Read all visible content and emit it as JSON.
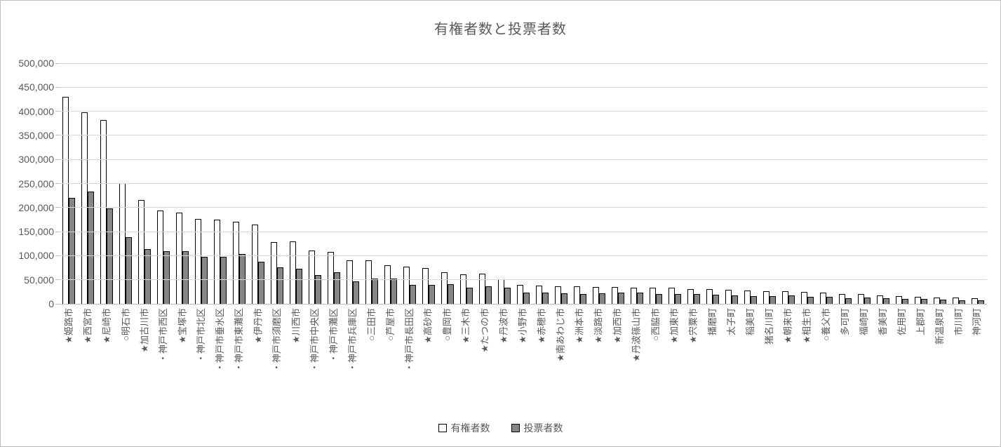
{
  "title": "有権者数と投票者数",
  "legend": {
    "series1_label": "有権者数",
    "series2_label": "投票者数"
  },
  "colors": {
    "series1_fill": "#FFFFFF",
    "series2_fill": "#868686",
    "bar_border": "#000000",
    "text": "#595959",
    "gridline": "#D9D9D9",
    "axis_line": "#BFBFBF"
  },
  "chart_data": {
    "type": "bar",
    "title": "有権者数と投票者数",
    "grid": true,
    "legend_position": "bottom",
    "ylim": [
      0,
      500000
    ],
    "ytick_step": 50000,
    "ytick_labels": [
      "0",
      "50,000",
      "100,000",
      "150,000",
      "200,000",
      "250,000",
      "300,000",
      "350,000",
      "400,000",
      "450,000",
      "500,000"
    ],
    "categories": [
      "★姫路市",
      "★西宮市",
      "★尼崎市",
      "○明石市",
      "★加古川市",
      "・神戸市西区",
      "★宝塚市",
      "・神戸市北区",
      "・神戸市垂水区",
      "・神戸市東灘区",
      "★伊丹市",
      "・神戸市須磨区",
      "★川西市",
      "・神戸市中央区",
      "・神戸市灘区",
      "・神戸市兵庫区",
      "○三田市",
      "○芦屋市",
      "・神戸市長田区",
      "★高砂市",
      "○豊岡市",
      "★三木市",
      "★たつの市",
      "★丹波市",
      "★小野市",
      "★赤穂市",
      "★南あわじ市",
      "★洲本市",
      "★淡路市",
      "★加西市",
      "★丹波篠山市",
      "○西脇市",
      "★加東市",
      "★宍粟市",
      "播磨町",
      "太子町",
      "稲美町",
      "猪名川町",
      "★朝来市",
      "★相生市",
      "○養父市",
      "多可町",
      "福崎町",
      "香美町",
      "佐用町",
      "上郡町",
      "新温泉町",
      "市川町",
      "神河町"
    ],
    "series": [
      {
        "name": "有権者数",
        "values": [
          430000,
          398000,
          382000,
          251000,
          216000,
          194000,
          189000,
          176000,
          175000,
          171000,
          165000,
          129000,
          130000,
          111000,
          108000,
          91000,
          90000,
          80000,
          78000,
          74000,
          65000,
          61000,
          62000,
          51000,
          39000,
          38000,
          37000,
          36000,
          35000,
          35000,
          34000,
          33000,
          33000,
          31000,
          30000,
          29000,
          28000,
          26000,
          26000,
          25000,
          23000,
          20000,
          20000,
          17000,
          16000,
          15000,
          13000,
          13000,
          12000
        ]
      },
      {
        "name": "投票者数",
        "values": [
          220000,
          233000,
          198000,
          139000,
          114000,
          110000,
          109000,
          97000,
          97000,
          104000,
          88000,
          76000,
          73000,
          60000,
          65000,
          46000,
          53000,
          52000,
          39000,
          39000,
          41000,
          33000,
          36000,
          33000,
          23000,
          23000,
          22000,
          21000,
          22000,
          23000,
          23000,
          21000,
          20000,
          21000,
          19000,
          18000,
          16000,
          16000,
          17000,
          14000,
          14000,
          12000,
          13000,
          12000,
          10000,
          10000,
          9000,
          8000,
          8000
        ]
      }
    ]
  }
}
